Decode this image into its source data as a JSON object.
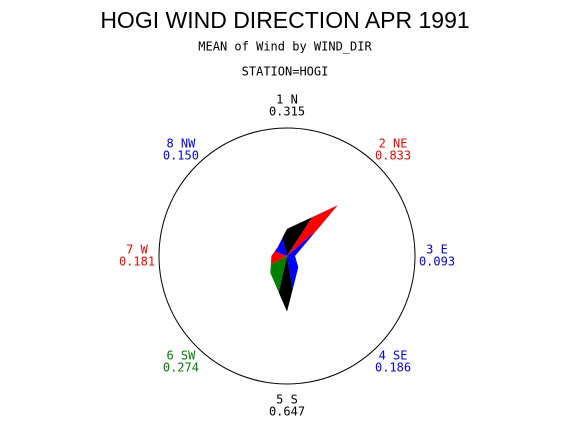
{
  "chart_data": {
    "type": "star",
    "title": "HOGI WIND DIRECTION APR 1991",
    "subtitle": "MEAN of Wind by WIND_DIR",
    "group_label": "STATION=HOGI",
    "categories": [
      "1 N",
      "2 NE",
      "3 E",
      "4 SE",
      "5 S",
      "6 SW",
      "7 W",
      "8 NW"
    ],
    "values": [
      0.315,
      0.833,
      0.093,
      0.186,
      0.647,
      0.274,
      0.181,
      0.15
    ],
    "value_labels": [
      "0.315",
      "0.833",
      "0.093",
      "0.186",
      "0.647",
      "0.274",
      "0.181",
      "0.150"
    ],
    "colors": [
      "#000000",
      "#ff0000",
      "#0000ff",
      "#0000ff",
      "#000000",
      "#008000",
      "#ff0000",
      "#0000ff"
    ]
  }
}
